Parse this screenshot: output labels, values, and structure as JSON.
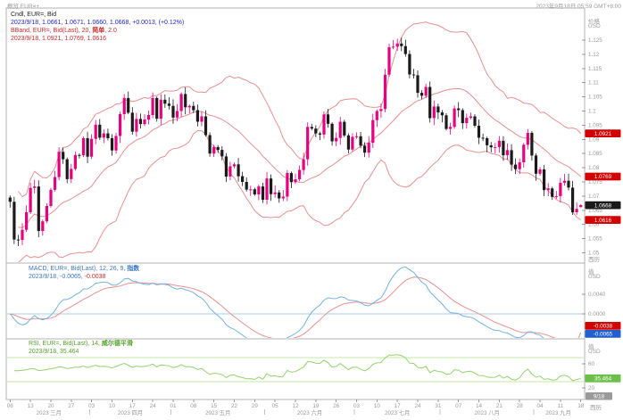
{
  "window": {
    "overview_label": "概览 EUR=+",
    "timestamp": "2023年9月18日 05:59 GMT+8:00"
  },
  "colors": {
    "up_candle": "#e4007f",
    "down_candle": "#1a1a1a",
    "bband_line": "#e89090",
    "macd_line": "#74b3e3",
    "signal_line": "#e89090",
    "zero_line": "#a8d0ea",
    "rsi_line": "#94d36d",
    "rsi_band_line": "#c4e8a8",
    "axis_text": "#9a9a9a",
    "frame_border": "#b3b3b3",
    "badge_red": "#d40000",
    "badge_black": "#1a1a1a",
    "badge_blue": "#1f5fd0",
    "badge_green": "#6cc04a",
    "badge_grey": "#9a9a9a"
  },
  "main_pane": {
    "legend": {
      "series": "Cndl, EUR=, Bid",
      "ohlc": "2023/9/18, 1.0661, 1.0671, 1.0660, 1.0668, +0.0013, (+0.12%)",
      "bband_prefix": "BBand, EUR=, Bid(Last), 20, ",
      "bband_param": "简单",
      "bband_suffix": ", 2.0",
      "bband_values": "2023/9/18, 1.0921, 1.0769, 1.0616"
    },
    "axis_title": "价格",
    "axis_currency": "USD",
    "axis_scale_label": "西历",
    "ticks": [
      "1.125",
      "1.12",
      "1.115",
      "1.11",
      "1.105",
      "1.1",
      "1.095",
      "1.09",
      "1.085",
      "1.08",
      "1.075",
      "1.07",
      "1.065",
      "1.06",
      "1.055",
      "1.05"
    ],
    "badges": [
      {
        "label": "1.0921",
        "value": 1.0921,
        "type": "band"
      },
      {
        "label": "1.0769",
        "value": 1.0769,
        "type": "band"
      },
      {
        "label": "1.0668",
        "value": 1.0668,
        "type": "last"
      },
      {
        "label": "1.0616",
        "value": 1.0616,
        "type": "band"
      }
    ]
  },
  "macd_pane": {
    "legend": {
      "series_prefix": "MACD, EUR=, Bid(Last), 12, 26, 9, ",
      "series_param": "指数",
      "values_macd": "2023/9/18, -0.0065, ",
      "values_signal": "-0.0038"
    },
    "axis_title": "值",
    "axis_currency": "USD",
    "ticks": [
      "0.0040",
      "0.0000"
    ],
    "badges": [
      {
        "label": "-0.0038",
        "value": -0.0038,
        "type": "signal"
      },
      {
        "label": "-0.0065",
        "value": -0.0065,
        "type": "macd"
      }
    ]
  },
  "rsi_pane": {
    "legend": {
      "series_prefix": "RSI, EUR=, Bid(Last), 14, ",
      "series_param": "威尔德平滑",
      "values": "2023/9/18, 35.464"
    },
    "axis_title": "值",
    "axis_currency": "USD",
    "axis_scale_label": "西历",
    "ticks": [
      "60",
      "20"
    ],
    "hlines": [
      70,
      30
    ],
    "badge": {
      "label": "35.464",
      "value": 35.464
    }
  },
  "time_axis": {
    "end_badge": "9/18",
    "months": [
      {
        "label": "2023 三月",
        "start": 0,
        "end": 19,
        "day_ticks": [
          {
            "label": "06",
            "i": 0
          },
          {
            "label": "13",
            "i": 5
          },
          {
            "label": "20",
            "i": 10
          },
          {
            "label": "27",
            "i": 15
          }
        ]
      },
      {
        "label": "2023 四月",
        "start": 20,
        "end": 39,
        "day_ticks": [
          {
            "label": "03",
            "i": 20
          },
          {
            "label": "10",
            "i": 25
          },
          {
            "label": "17",
            "i": 30
          },
          {
            "label": "24",
            "i": 35
          }
        ]
      },
      {
        "label": "2023 五月",
        "start": 40,
        "end": 62,
        "day_ticks": [
          {
            "label": "01",
            "i": 40
          },
          {
            "label": "08",
            "i": 45
          },
          {
            "label": "15",
            "i": 50
          },
          {
            "label": "22",
            "i": 55
          },
          {
            "label": "29",
            "i": 60
          }
        ]
      },
      {
        "label": "2023 六月",
        "start": 63,
        "end": 84,
        "day_ticks": [
          {
            "label": "05",
            "i": 65
          },
          {
            "label": "12",
            "i": 70
          },
          {
            "label": "19",
            "i": 75
          },
          {
            "label": "26",
            "i": 80
          }
        ]
      },
      {
        "label": "2023 七月",
        "start": 85,
        "end": 105,
        "day_ticks": [
          {
            "label": "03",
            "i": 85
          },
          {
            "label": "10",
            "i": 90
          },
          {
            "label": "17",
            "i": 95
          },
          {
            "label": "24",
            "i": 100
          },
          {
            "label": "31",
            "i": 105
          }
        ]
      },
      {
        "label": "2023 八月",
        "start": 106,
        "end": 128,
        "day_ticks": [
          {
            "label": "07",
            "i": 110
          },
          {
            "label": "14",
            "i": 115
          },
          {
            "label": "21",
            "i": 120
          },
          {
            "label": "28",
            "i": 125
          }
        ]
      },
      {
        "label": "2023 九月",
        "start": 129,
        "end": 140,
        "day_ticks": [
          {
            "label": "04",
            "i": 130
          },
          {
            "label": "11",
            "i": 135
          },
          {
            "label": "18",
            "i": 140
          }
        ]
      }
    ]
  },
  "chart_data": {
    "type": "candlestick",
    "symbol": "EUR=",
    "field": "Bid",
    "interval": "daily",
    "date_range": "2023 三月 - 2023 九月 (2023/3/6 - 2023/9/18)",
    "price_axis_range": [
      1.046,
      1.136
    ],
    "closes": [
      1.068,
      1.0547,
      1.0545,
      1.0581,
      1.0643,
      1.0729,
      1.0734,
      1.0577,
      1.0611,
      1.0665,
      1.0722,
      1.0767,
      1.0856,
      1.083,
      1.076,
      1.0796,
      1.0845,
      1.0844,
      1.0904,
      1.0839,
      1.0902,
      1.0952,
      1.0906,
      1.0921,
      1.0904,
      1.0861,
      1.0912,
      1.0989,
      1.1046,
      1.0994,
      1.0927,
      1.0972,
      1.0954,
      1.097,
      1.0986,
      1.1046,
      1.0973,
      1.104,
      1.1026,
      1.1018,
      1.0977,
      1.1,
      1.106,
      1.1013,
      1.1018,
      1.1003,
      1.0962,
      1.0981,
      1.0915,
      1.085,
      1.0873,
      1.0863,
      1.084,
      1.0769,
      1.0805,
      1.0812,
      1.077,
      1.075,
      1.0723,
      1.0724,
      1.0706,
      1.0734,
      1.0687,
      1.0762,
      1.0707,
      1.0713,
      1.0692,
      1.0698,
      1.0781,
      1.0749,
      1.0759,
      1.0792,
      1.083,
      1.0944,
      1.0938,
      1.0921,
      1.0917,
      1.0988,
      1.0955,
      1.0893,
      1.0905,
      1.0962,
      1.0914,
      1.0864,
      1.0909,
      1.0911,
      1.0878,
      1.0853,
      1.0888,
      1.0968,
      1.1,
      1.1007,
      1.1128,
      1.1225,
      1.1227,
      1.1238,
      1.1229,
      1.1201,
      1.1129,
      1.1126,
      1.1064,
      1.1054,
      1.1085,
      1.0975,
      1.1016,
      1.0995,
      1.0985,
      1.0937,
      1.0944,
      1.1009,
      1.1003,
      1.0957,
      1.0976,
      1.0981,
      1.0948,
      1.0906,
      1.0904,
      1.0879,
      1.0872,
      1.0873,
      1.0895,
      1.0844,
      1.0862,
      1.0811,
      1.0795,
      1.0819,
      1.0881,
      1.0923,
      1.0843,
      1.0779,
      1.0794,
      1.0721,
      1.0727,
      1.0697,
      1.07,
      1.0747,
      1.0754,
      1.073,
      1.0643,
      1.0655,
      1.0668
    ],
    "last_candle": {
      "date": "2023/9/18",
      "open": 1.0661,
      "high": 1.0671,
      "low": 1.066,
      "close": 1.0668,
      "change": "+0.0013",
      "change_pct": "+0.12%"
    },
    "indicators": {
      "bband": {
        "period": 20,
        "ma_type": "简单",
        "stdev": 2.0,
        "last_upper": 1.0921,
        "last_middle": 1.0769,
        "last_lower": 1.0616
      },
      "macd": {
        "fast": 12,
        "slow": 26,
        "signal": 9,
        "ma_type": "指数",
        "last_macd": -0.0065,
        "last_signal": -0.0038
      },
      "rsi": {
        "period": 14,
        "smoothing": "威尔德平滑",
        "last": 35.464,
        "overbought": 70,
        "oversold": 30
      }
    }
  }
}
